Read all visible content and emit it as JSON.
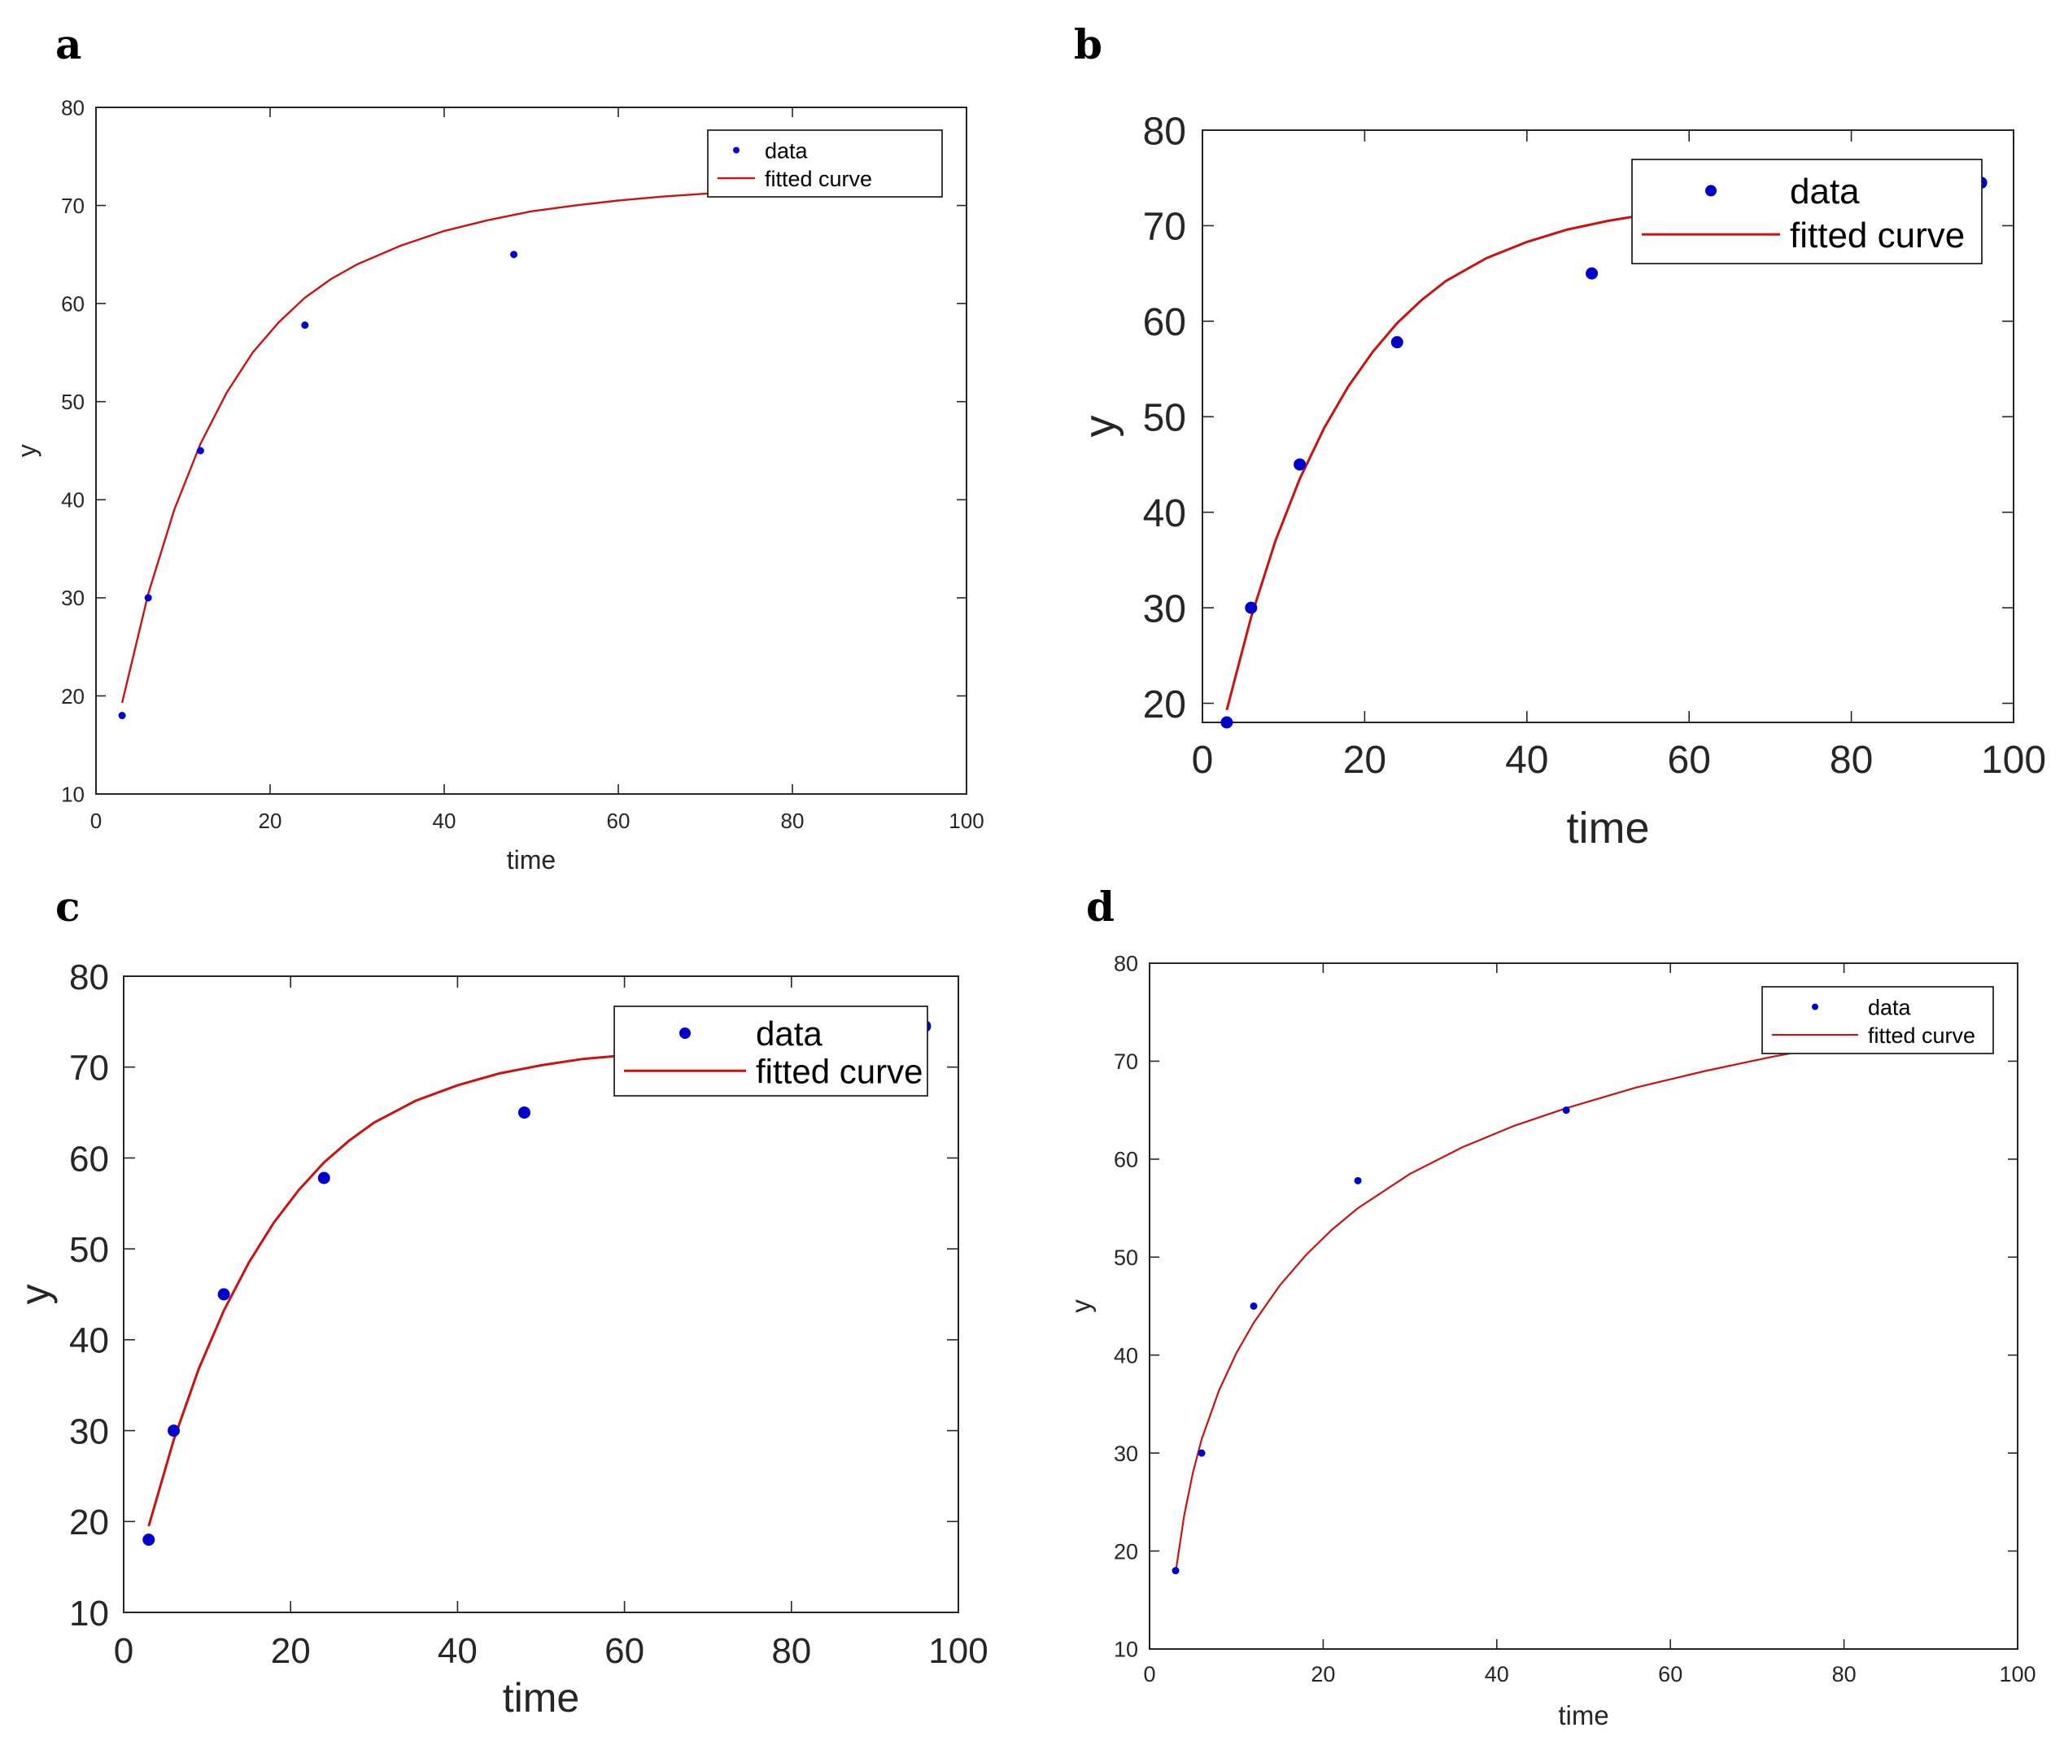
{
  "figure": {
    "panel_letters": [
      "a",
      "b",
      "c",
      "d"
    ]
  },
  "legend": {
    "data_label": "data",
    "curve_label": "fitted curve"
  },
  "colors": {
    "data_marker": "#0000cc",
    "fitted_curve": "#cc1111",
    "axes": "#262626"
  },
  "chart_data": [
    {
      "panel": "a",
      "type": "scatter",
      "xlabel": "time",
      "ylabel": "y",
      "xlim": [
        0,
        100
      ],
      "ylim": [
        10,
        80
      ],
      "xticks": [
        0,
        20,
        40,
        60,
        80,
        100
      ],
      "yticks": [
        10,
        20,
        30,
        40,
        50,
        60,
        70,
        80
      ],
      "legend_position": "top-right",
      "series": [
        {
          "name": "data",
          "kind": "scatter",
          "x": [
            3,
            6,
            12,
            24,
            48,
            96
          ],
          "y": [
            18,
            30,
            45,
            57.8,
            65,
            74.5
          ]
        },
        {
          "name": "fitted curve",
          "kind": "line",
          "x": [
            3,
            6,
            9,
            12,
            15,
            18,
            21,
            24,
            27,
            30,
            35,
            40,
            45,
            50,
            55,
            60,
            65,
            70,
            75,
            80,
            85,
            90,
            96
          ],
          "y": [
            19.3,
            30.4,
            39.0,
            45.7,
            50.9,
            55.0,
            58.1,
            60.6,
            62.5,
            64.0,
            65.9,
            67.4,
            68.5,
            69.4,
            70.0,
            70.5,
            70.9,
            71.2,
            71.4,
            71.6,
            71.8,
            71.9,
            72.0
          ]
        }
      ]
    },
    {
      "panel": "b",
      "type": "scatter",
      "xlabel": "time",
      "ylabel": "y",
      "xlim": [
        0,
        100
      ],
      "ylim": [
        18,
        80
      ],
      "xticks": [
        0,
        20,
        40,
        60,
        80,
        100
      ],
      "yticks": [
        20,
        30,
        40,
        50,
        60,
        70,
        80
      ],
      "legend_position": "top-right",
      "series": [
        {
          "name": "data",
          "kind": "scatter",
          "x": [
            3,
            6,
            12,
            24,
            48,
            96
          ],
          "y": [
            18,
            30,
            45,
            57.8,
            65,
            74.5
          ]
        },
        {
          "name": "fitted curve",
          "kind": "line",
          "x": [
            3,
            6,
            9,
            12,
            15,
            18,
            21,
            24,
            27,
            30,
            35,
            40,
            45,
            50,
            55,
            60,
            65,
            70,
            75,
            80,
            85,
            90,
            96
          ],
          "y": [
            19.3,
            29.0,
            37.0,
            43.5,
            48.8,
            53.2,
            56.8,
            59.8,
            62.2,
            64.2,
            66.6,
            68.3,
            69.6,
            70.5,
            71.2,
            71.6,
            72.0,
            72.2,
            72.4,
            72.5,
            72.6,
            72.7,
            72.7
          ]
        }
      ]
    },
    {
      "panel": "c",
      "type": "scatter",
      "xlabel": "time",
      "ylabel": "y",
      "xlim": [
        0,
        100
      ],
      "ylim": [
        10,
        80
      ],
      "xticks": [
        0,
        20,
        40,
        60,
        80,
        100
      ],
      "yticks": [
        10,
        20,
        30,
        40,
        50,
        60,
        70,
        80
      ],
      "legend_position": "top-right",
      "series": [
        {
          "name": "data",
          "kind": "scatter",
          "x": [
            3,
            6,
            12,
            24,
            48,
            96
          ],
          "y": [
            18,
            30,
            45,
            57.8,
            65,
            74.5
          ]
        },
        {
          "name": "fitted curve",
          "kind": "line",
          "x": [
            3,
            6,
            9,
            12,
            15,
            18,
            21,
            24,
            27,
            30,
            35,
            40,
            45,
            50,
            55,
            60,
            65,
            70,
            75,
            80,
            85,
            90,
            96
          ],
          "y": [
            19.5,
            29.0,
            36.8,
            43.2,
            48.5,
            52.9,
            56.5,
            59.5,
            61.9,
            63.9,
            66.3,
            68.0,
            69.3,
            70.2,
            70.9,
            71.3,
            71.7,
            71.9,
            72.1,
            72.2,
            72.3,
            72.4,
            72.4
          ]
        }
      ]
    },
    {
      "panel": "d",
      "type": "scatter",
      "xlabel": "time",
      "ylabel": "y",
      "xlim": [
        0,
        100
      ],
      "ylim": [
        10,
        80
      ],
      "xticks": [
        0,
        20,
        40,
        60,
        80,
        100
      ],
      "yticks": [
        10,
        20,
        30,
        40,
        50,
        60,
        70,
        80
      ],
      "legend_position": "top-right",
      "series": [
        {
          "name": "data",
          "kind": "scatter",
          "x": [
            3,
            6,
            12,
            24,
            48,
            96
          ],
          "y": [
            18,
            30,
            45,
            57.8,
            65,
            74.5
          ]
        },
        {
          "name": "fitted curve",
          "kind": "line",
          "x": [
            3,
            4,
            5,
            6,
            8,
            10,
            12,
            15,
            18,
            21,
            24,
            30,
            36,
            42,
            48,
            56,
            64,
            72,
            80,
            88,
            96
          ],
          "y": [
            17.8,
            23.7,
            28.0,
            31.4,
            36.4,
            40.2,
            43.3,
            47.1,
            50.2,
            52.8,
            55.0,
            58.5,
            61.2,
            63.4,
            65.2,
            67.3,
            69.0,
            70.5,
            71.8,
            72.9,
            73.8
          ]
        }
      ]
    }
  ]
}
